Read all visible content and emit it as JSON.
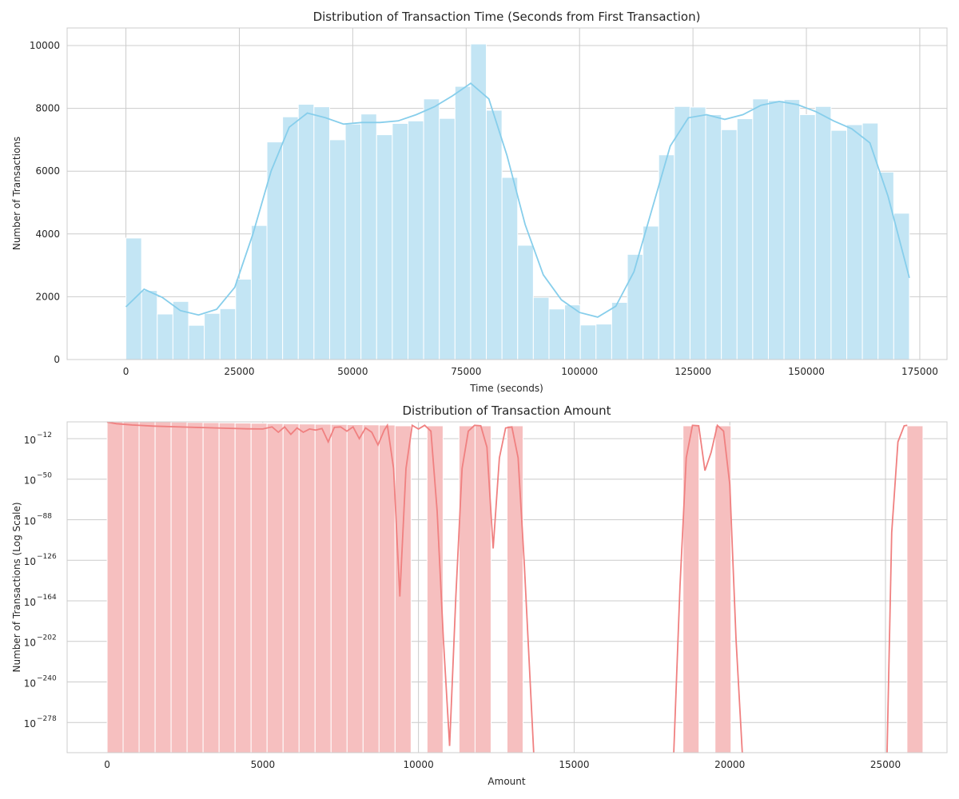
{
  "chart_data": [
    {
      "type": "bar",
      "title": "Distribution of Transaction Time (Seconds from First Transaction)",
      "xlabel": "Time (seconds)",
      "ylabel": "Number of Transactions",
      "xlim": [
        -12960,
        181000
      ],
      "ylim": [
        0,
        10560
      ],
      "xticks": [
        0,
        25000,
        50000,
        75000,
        100000,
        125000,
        150000,
        175000
      ],
      "xtick_labels": [
        "0",
        "25000",
        "50000",
        "75000",
        "100000",
        "125000",
        "150000",
        "175000"
      ],
      "yticks": [
        0,
        2000,
        4000,
        6000,
        8000,
        10000
      ],
      "ytick_labels": [
        "0",
        "2000",
        "4000",
        "6000",
        "8000",
        "10000"
      ],
      "grid": true,
      "bin_edges": [
        0,
        3454,
        6908,
        10363,
        13817,
        17271,
        20725,
        24179,
        27634,
        31088,
        34542,
        37996,
        41450,
        44905,
        48359,
        51813,
        55267,
        58721,
        62176,
        65630,
        69084,
        72538,
        75992,
        79447,
        82901,
        86355,
        89809,
        93263,
        96718,
        100172,
        103626,
        107080,
        110534,
        113989,
        117443,
        120897,
        124351,
        127805,
        131260,
        134714,
        138168,
        141622,
        145076,
        148531,
        151985,
        155439,
        158893,
        162347,
        165802,
        169256,
        172710
      ],
      "counts": [
        3870,
        2200,
        1450,
        1850,
        1090,
        1470,
        1620,
        2560,
        4270,
        6930,
        7730,
        8130,
        8050,
        7000,
        7500,
        7820,
        7160,
        7520,
        7600,
        8300,
        7680,
        8700,
        10050,
        7940,
        5800,
        3640,
        1980,
        1610,
        1740,
        1100,
        1130,
        1820,
        3350,
        4250,
        6520,
        8060,
        8040,
        7800,
        7320,
        7670,
        8300,
        8250,
        8280,
        7800,
        8060,
        7300,
        7480,
        7530,
        5970,
        4660
      ],
      "kde": {
        "x": [
          0,
          4000,
          8000,
          12000,
          16000,
          20000,
          24000,
          28000,
          32000,
          36000,
          40000,
          44000,
          48000,
          52000,
          56000,
          60000,
          64000,
          68000,
          72000,
          76000,
          80000,
          84000,
          88000,
          92000,
          96000,
          100000,
          104000,
          108000,
          112000,
          116000,
          120000,
          124000,
          128000,
          132000,
          136000,
          140000,
          144000,
          148000,
          152000,
          156000,
          160000,
          164000,
          168000,
          172710
        ],
        "y": [
          1680,
          2240,
          1980,
          1560,
          1420,
          1600,
          2300,
          4000,
          6000,
          7400,
          7850,
          7700,
          7500,
          7550,
          7550,
          7600,
          7800,
          8050,
          8400,
          8800,
          8300,
          6500,
          4300,
          2700,
          1900,
          1500,
          1350,
          1700,
          2800,
          4800,
          6800,
          7700,
          7800,
          7650,
          7800,
          8100,
          8220,
          8120,
          7900,
          7600,
          7350,
          6900,
          5200,
          2600
        ]
      },
      "color": "#87ceeb",
      "bar_fill": "#c3e5f4"
    },
    {
      "type": "bar",
      "title": "Distribution of Transaction Amount",
      "xlabel": "Amount",
      "ylabel": "Number of Transactions (Log Scale)",
      "yscale": "log",
      "xlim": [
        -1284.5,
        26976
      ],
      "ylim_log10": [
        -306.3,
        3.7
      ],
      "xticks": [
        0,
        5000,
        10000,
        15000,
        20000,
        25000
      ],
      "xtick_labels": [
        "0",
        "5000",
        "10000",
        "15000",
        "20000",
        "25000"
      ],
      "yticks_log10": [
        -12,
        -50,
        -88,
        -126,
        -164,
        -202,
        -240,
        -278
      ],
      "ytick_labels": [
        {
          "base": "10",
          "exp": "−12"
        },
        {
          "base": "10",
          "exp": "−50"
        },
        {
          "base": "10",
          "exp": "−88"
        },
        {
          "base": "10",
          "exp": "−126"
        },
        {
          "base": "10",
          "exp": "−164"
        },
        {
          "base": "10",
          "exp": "−202"
        },
        {
          "base": "10",
          "exp": "−240"
        },
        {
          "base": "10",
          "exp": "−278"
        }
      ],
      "grid": true,
      "bin_start": 0,
      "bin_width": 513.8,
      "bar_tops_log10": [
        5.5,
        4.7,
        4.2,
        3.8,
        3.5,
        3.2,
        3.0,
        2.8,
        2.6,
        2.4,
        2.1,
        1.9,
        1.7,
        1.5,
        1.3,
        1.1,
        0.9,
        0.7,
        0.0,
        null,
        0.0,
        null,
        0.0,
        0.0,
        null,
        0.0,
        null,
        null,
        null,
        null,
        null,
        null,
        null,
        null,
        null,
        null,
        0.0,
        null,
        0.0,
        null,
        null,
        null,
        null,
        null,
        null,
        null,
        null,
        null,
        null,
        null,
        0.0
      ],
      "kde_segments": [
        {
          "x": [
            0,
            300,
            800,
            1500,
            2500,
            3500,
            4500,
            5000,
            5300,
            5500,
            5700,
            5900,
            6100,
            6300,
            6500,
            6700,
            6900,
            7100,
            7300,
            7500,
            7700,
            7900,
            8100,
            8300,
            8500,
            8700,
            8900,
            9000,
            9200,
            9400,
            9600,
            9800,
            10000,
            10200,
            10400,
            10600,
            10800,
            11000
          ],
          "y": [
            3.5,
            2.0,
            0.8,
            -0.3,
            -1.2,
            -2.0,
            -2.8,
            -3.0,
            -1.0,
            -6.0,
            -1.0,
            -8.0,
            -2.0,
            -6.0,
            -3.0,
            -4.0,
            -2.5,
            -15.0,
            -1.5,
            -1.0,
            -5.0,
            -1.0,
            -12.0,
            -2.0,
            -6.0,
            -18.0,
            -4.0,
            0.5,
            -40.0,
            -160.0,
            -40.0,
            0.5,
            -3.0,
            0.5,
            -5.0,
            -80.0,
            -200.0,
            -300.0
          ]
        },
        {
          "x": [
            11000,
            11200,
            11400,
            11600,
            11800,
            12000,
            12200,
            12400,
            12600,
            12800,
            13000,
            13200,
            13400,
            13700
          ],
          "y": [
            -300.0,
            -160.0,
            -40.0,
            -5.0,
            0.5,
            0.0,
            -20.0,
            -115.0,
            -30.0,
            -2.0,
            -1.0,
            -30.0,
            -130.0,
            -306.0
          ]
        },
        {
          "x": [
            18200,
            18400,
            18600,
            18800,
            19000,
            19200,
            19400,
            19600,
            19800,
            20000,
            20200,
            20400
          ],
          "y": [
            -306.0,
            -150.0,
            -30.0,
            0.5,
            0.0,
            -42.0,
            -25.0,
            0.5,
            -5.0,
            -55.0,
            -200.0,
            -306.0
          ]
        },
        {
          "x": [
            25050,
            25200,
            25400,
            25600,
            25700
          ],
          "y": [
            -306.0,
            -100.0,
            -15.0,
            0.0,
            0.5
          ]
        }
      ],
      "color": "#f08080",
      "bar_fill": "#f6bfbf"
    }
  ]
}
